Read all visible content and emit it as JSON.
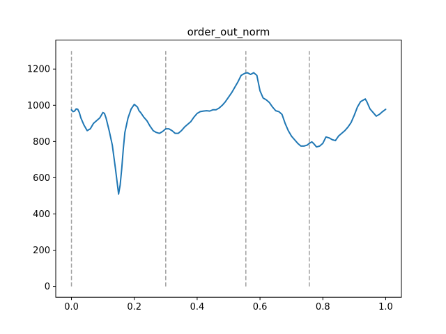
{
  "chart_data": {
    "type": "line",
    "title": "order_out_norm",
    "xlabel": "",
    "ylabel": "",
    "xlim": [
      -0.05,
      1.05
    ],
    "ylim": [
      -60,
      1360
    ],
    "grid": false,
    "xticks": [
      0.0,
      0.2,
      0.4,
      0.6,
      0.8,
      1.0
    ],
    "xtick_labels": [
      "0.0",
      "0.2",
      "0.4",
      "0.6",
      "0.8",
      "1.0"
    ],
    "yticks": [
      0,
      200,
      400,
      600,
      800,
      1000,
      1200
    ],
    "ytick_labels": [
      "0",
      "200",
      "400",
      "600",
      "800",
      "1000",
      "1200"
    ],
    "vlines": {
      "x": [
        0.0,
        0.3,
        0.555,
        0.757
      ],
      "y_range": [
        0,
        1300
      ],
      "color": "#a0a0a0",
      "style": "dashed"
    },
    "series": [
      {
        "color": "#1f77b4",
        "x": [
          0.0,
          0.005,
          0.01,
          0.015,
          0.02,
          0.025,
          0.03,
          0.04,
          0.05,
          0.06,
          0.07,
          0.08,
          0.09,
          0.1,
          0.105,
          0.11,
          0.12,
          0.13,
          0.14,
          0.15,
          0.155,
          0.16,
          0.165,
          0.17,
          0.18,
          0.19,
          0.2,
          0.21,
          0.215,
          0.22,
          0.23,
          0.24,
          0.25,
          0.26,
          0.27,
          0.28,
          0.29,
          0.3,
          0.31,
          0.32,
          0.33,
          0.34,
          0.35,
          0.36,
          0.37,
          0.38,
          0.39,
          0.4,
          0.41,
          0.42,
          0.43,
          0.44,
          0.45,
          0.46,
          0.47,
          0.48,
          0.49,
          0.5,
          0.51,
          0.52,
          0.53,
          0.54,
          0.55,
          0.555,
          0.56,
          0.57,
          0.58,
          0.59,
          0.6,
          0.61,
          0.62,
          0.63,
          0.64,
          0.65,
          0.66,
          0.67,
          0.68,
          0.69,
          0.7,
          0.71,
          0.72,
          0.73,
          0.74,
          0.75,
          0.757,
          0.765,
          0.77,
          0.78,
          0.79,
          0.8,
          0.81,
          0.82,
          0.83,
          0.84,
          0.85,
          0.86,
          0.87,
          0.88,
          0.89,
          0.9,
          0.91,
          0.92,
          0.93,
          0.935,
          0.94,
          0.95,
          0.96,
          0.97,
          0.98,
          0.99,
          1.0
        ],
        "y": [
          975,
          965,
          968,
          980,
          978,
          960,
          930,
          890,
          860,
          870,
          900,
          915,
          930,
          960,
          955,
          930,
          860,
          780,
          650,
          510,
          560,
          650,
          760,
          850,
          930,
          980,
          1005,
          990,
          970,
          960,
          935,
          915,
          885,
          860,
          850,
          845,
          855,
          870,
          870,
          860,
          845,
          845,
          860,
          880,
          895,
          910,
          935,
          955,
          965,
          968,
          970,
          968,
          975,
          975,
          985,
          1000,
          1020,
          1045,
          1070,
          1100,
          1130,
          1165,
          1175,
          1178,
          1180,
          1170,
          1180,
          1165,
          1080,
          1040,
          1030,
          1015,
          990,
          970,
          965,
          950,
          900,
          860,
          830,
          810,
          790,
          775,
          775,
          780,
          790,
          798,
          790,
          770,
          775,
          790,
          825,
          820,
          810,
          805,
          830,
          845,
          860,
          880,
          905,
          945,
          990,
          1020,
          1030,
          1035,
          1020,
          980,
          960,
          940,
          950,
          965,
          978
        ]
      }
    ]
  }
}
